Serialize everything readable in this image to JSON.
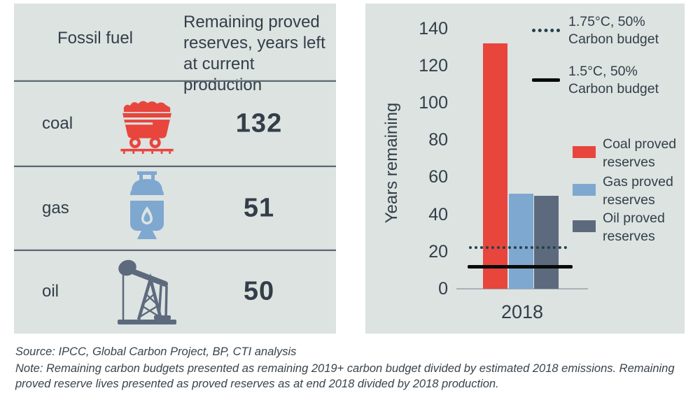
{
  "table": {
    "header_fuel": "Fossil fuel",
    "header_value": "Remaining proved reserves, years left at current production",
    "rows": [
      {
        "label": "coal",
        "icon": "coal-cart-icon",
        "value": "132",
        "color": "#e8453d"
      },
      {
        "label": "gas",
        "icon": "gas-cylinder-icon",
        "value": "51",
        "color": "#7fa8d0"
      },
      {
        "label": "oil",
        "icon": "oil-pumpjack-icon",
        "value": "50",
        "color": "#5d6a7d"
      }
    ]
  },
  "chart_data": {
    "type": "bar",
    "title": "",
    "categories": [
      "2018"
    ],
    "series": [
      {
        "name": "Coal proved reserves",
        "values": [
          132
        ],
        "color": "#e8453d"
      },
      {
        "name": "Gas proved reserves",
        "values": [
          51
        ],
        "color": "#7fa8d0"
      },
      {
        "name": "Oil proved reserves",
        "values": [
          50
        ],
        "color": "#5d6a7d"
      }
    ],
    "reference_lines": [
      {
        "label": "1.75°C, 50% Carbon budget",
        "value": 22,
        "style": "dotted",
        "color": "#24404d"
      },
      {
        "label": "1.5°C, 50% Carbon budget",
        "value": 12,
        "style": "solid",
        "color": "#0a0a0a"
      }
    ],
    "xlabel": "",
    "ylabel": "Years remaining",
    "ylim": [
      0,
      140
    ],
    "yticks": [
      0,
      20,
      40,
      60,
      80,
      100,
      120,
      140
    ],
    "grid": false,
    "legend_position": "right"
  },
  "footer": {
    "source": "Source: IPCC, Global Carbon Project, BP, CTI analysis",
    "note": "Note: Remaining carbon budgets presented as remaining 2019+ carbon budget divided by estimated 2018 emissions. Remaining proved reserve lives presented as proved reserves as at end 2018 divided by 2018 production."
  },
  "colors": {
    "panel_bg": "#dce3e1",
    "text": "#333e48",
    "coal": "#e8453d",
    "gas": "#7fa8d0",
    "oil": "#5d6a7d"
  }
}
